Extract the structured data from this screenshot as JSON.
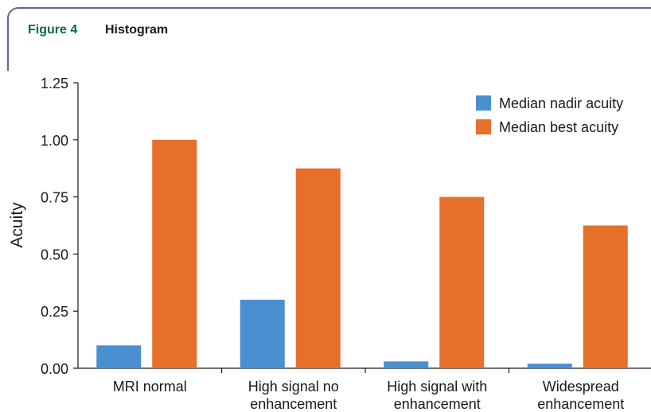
{
  "figure": {
    "label": "Figure 4",
    "title": "Histogram"
  },
  "chart_data": {
    "type": "bar",
    "title": "",
    "xlabel": "",
    "ylabel": "Acuity",
    "ylim": [
      0,
      1.25
    ],
    "yticks": [
      "0.00",
      "0.25",
      "0.50",
      "0.75",
      "1.00",
      "1.25"
    ],
    "grid": false,
    "legend_position": "top-right",
    "categories": [
      [
        "MRI normal"
      ],
      [
        "High signal no",
        "enhancement"
      ],
      [
        "High signal with",
        "enhancement"
      ],
      [
        "Widespread",
        "enhancement"
      ]
    ],
    "series": [
      {
        "name": "Median nadir acuity",
        "color": "#4a90d0",
        "values": [
          0.1,
          0.3,
          0.03,
          0.02
        ]
      },
      {
        "name": "Median best acuity",
        "color": "#e66f2a",
        "values": [
          1.0,
          0.875,
          0.75,
          0.625
        ]
      }
    ]
  }
}
